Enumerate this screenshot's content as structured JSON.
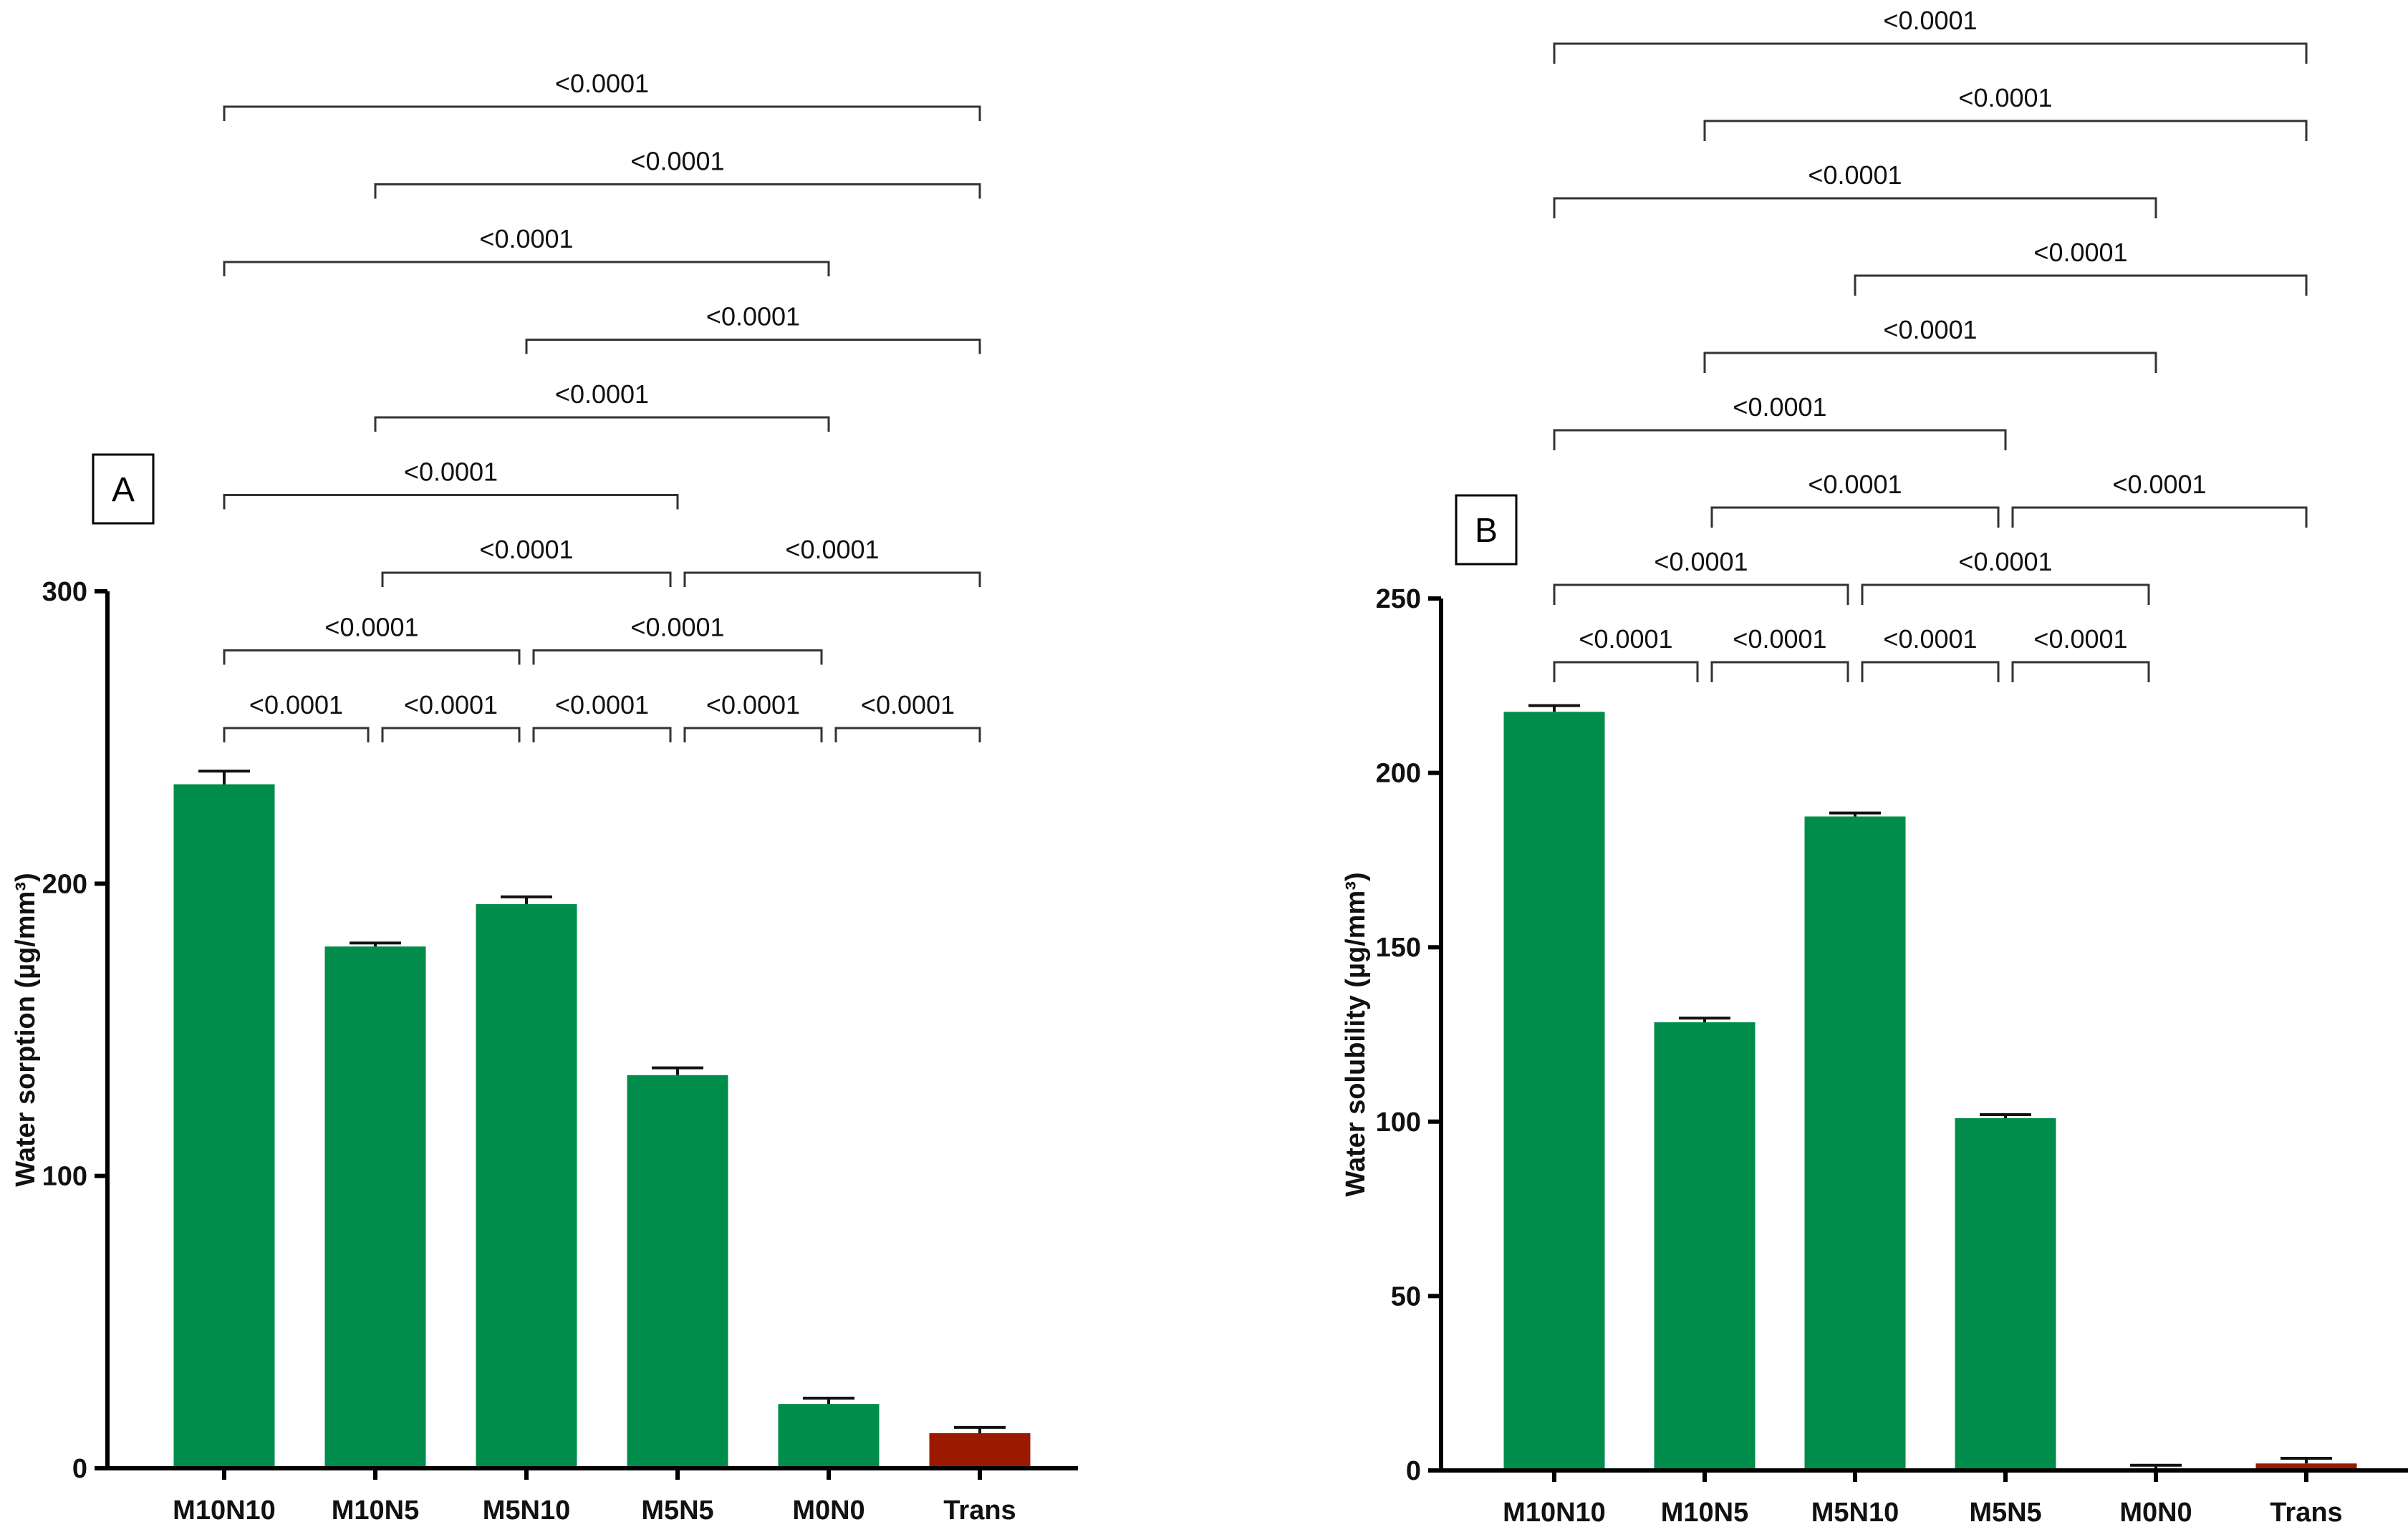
{
  "chart_data": [
    {
      "type": "bar",
      "panel_label": "A",
      "categories": [
        "M10N10",
        "M10N5",
        "M5N10",
        "M5N5",
        "M0N0",
        "Trans"
      ],
      "values": [
        234,
        178.5,
        193,
        134.5,
        22,
        12
      ],
      "errors": [
        4.5,
        1.2,
        2.5,
        2.5,
        2,
        2
      ],
      "bar_colors": [
        "#008c4a",
        "#008c4a",
        "#008c4a",
        "#008c4a",
        "#008c4a",
        "#9b1a00"
      ],
      "title": "",
      "xlabel": "",
      "ylabel": "Water sorption (µg/mm³)",
      "ylim": [
        0,
        300
      ],
      "yticks": [
        "0",
        "100",
        "200",
        "300"
      ],
      "comparisons": [
        {
          "from": 0,
          "to": 1,
          "label": "<0.0001",
          "level": 0
        },
        {
          "from": 1,
          "to": 2,
          "label": "<0.0001",
          "level": 0
        },
        {
          "from": 2,
          "to": 3,
          "label": "<0.0001",
          "level": 0
        },
        {
          "from": 3,
          "to": 4,
          "label": "<0.0001",
          "level": 0
        },
        {
          "from": 4,
          "to": 5,
          "label": "<0.0001",
          "level": 0
        },
        {
          "from": 0,
          "to": 2,
          "label": "<0.0001",
          "level": 1
        },
        {
          "from": 2,
          "to": 4,
          "label": "<0.0001",
          "level": 1
        },
        {
          "from": 1,
          "to": 3,
          "label": "<0.0001",
          "level": 2
        },
        {
          "from": 3,
          "to": 5,
          "label": "<0.0001",
          "level": 2
        },
        {
          "from": 0,
          "to": 3,
          "label": "<0.0001",
          "level": 3
        },
        {
          "from": 1,
          "to": 4,
          "label": "<0.0001",
          "level": 4
        },
        {
          "from": 2,
          "to": 5,
          "label": "<0.0001",
          "level": 5
        },
        {
          "from": 0,
          "to": 4,
          "label": "<0.0001",
          "level": 6
        },
        {
          "from": 1,
          "to": 5,
          "label": "<0.0001",
          "level": 7
        },
        {
          "from": 0,
          "to": 5,
          "label": "<0.0001",
          "level": 8
        }
      ]
    },
    {
      "type": "bar",
      "panel_label": "B",
      "categories": [
        "M10N10",
        "M10N5",
        "M5N10",
        "M5N5",
        "M0N0",
        "Trans"
      ],
      "values": [
        217.5,
        128.5,
        187.5,
        101,
        0,
        2
      ],
      "errors": [
        1.8,
        1.2,
        1,
        1,
        1.5,
        1.5
      ],
      "bar_colors": [
        "#008c4a",
        "#008c4a",
        "#008c4a",
        "#008c4a",
        "#008c4a",
        "#9b1a00"
      ],
      "title": "",
      "xlabel": "",
      "ylabel": "Water solubility (µg/mm³)",
      "ylim": [
        0,
        250
      ],
      "yticks": [
        "0",
        "50",
        "100",
        "150",
        "200",
        "250"
      ],
      "comparisons": [
        {
          "from": 0,
          "to": 1,
          "label": "<0.0001",
          "level": 0
        },
        {
          "from": 1,
          "to": 2,
          "label": "<0.0001",
          "level": 0
        },
        {
          "from": 2,
          "to": 3,
          "label": "<0.0001",
          "level": 0
        },
        {
          "from": 3,
          "to": 4,
          "label": "<0.0001",
          "level": 0
        },
        {
          "from": 0,
          "to": 2,
          "label": "<0.0001",
          "level": 1
        },
        {
          "from": 2,
          "to": 4,
          "label": "<0.0001",
          "level": 1
        },
        {
          "from": 1,
          "to": 3,
          "label": "<0.0001",
          "level": 2
        },
        {
          "from": 3,
          "to": 5,
          "label": "<0.0001",
          "level": 2
        },
        {
          "from": 0,
          "to": 3,
          "label": "<0.0001",
          "level": 3
        },
        {
          "from": 1,
          "to": 4,
          "label": "<0.0001",
          "level": 4
        },
        {
          "from": 2,
          "to": 5,
          "label": "<0.0001",
          "level": 5
        },
        {
          "from": 0,
          "to": 4,
          "label": "<0.0001",
          "level": 6
        },
        {
          "from": 1,
          "to": 5,
          "label": "<0.0001",
          "level": 7
        },
        {
          "from": 0,
          "to": 5,
          "label": "<0.0001",
          "level": 8
        }
      ]
    }
  ]
}
